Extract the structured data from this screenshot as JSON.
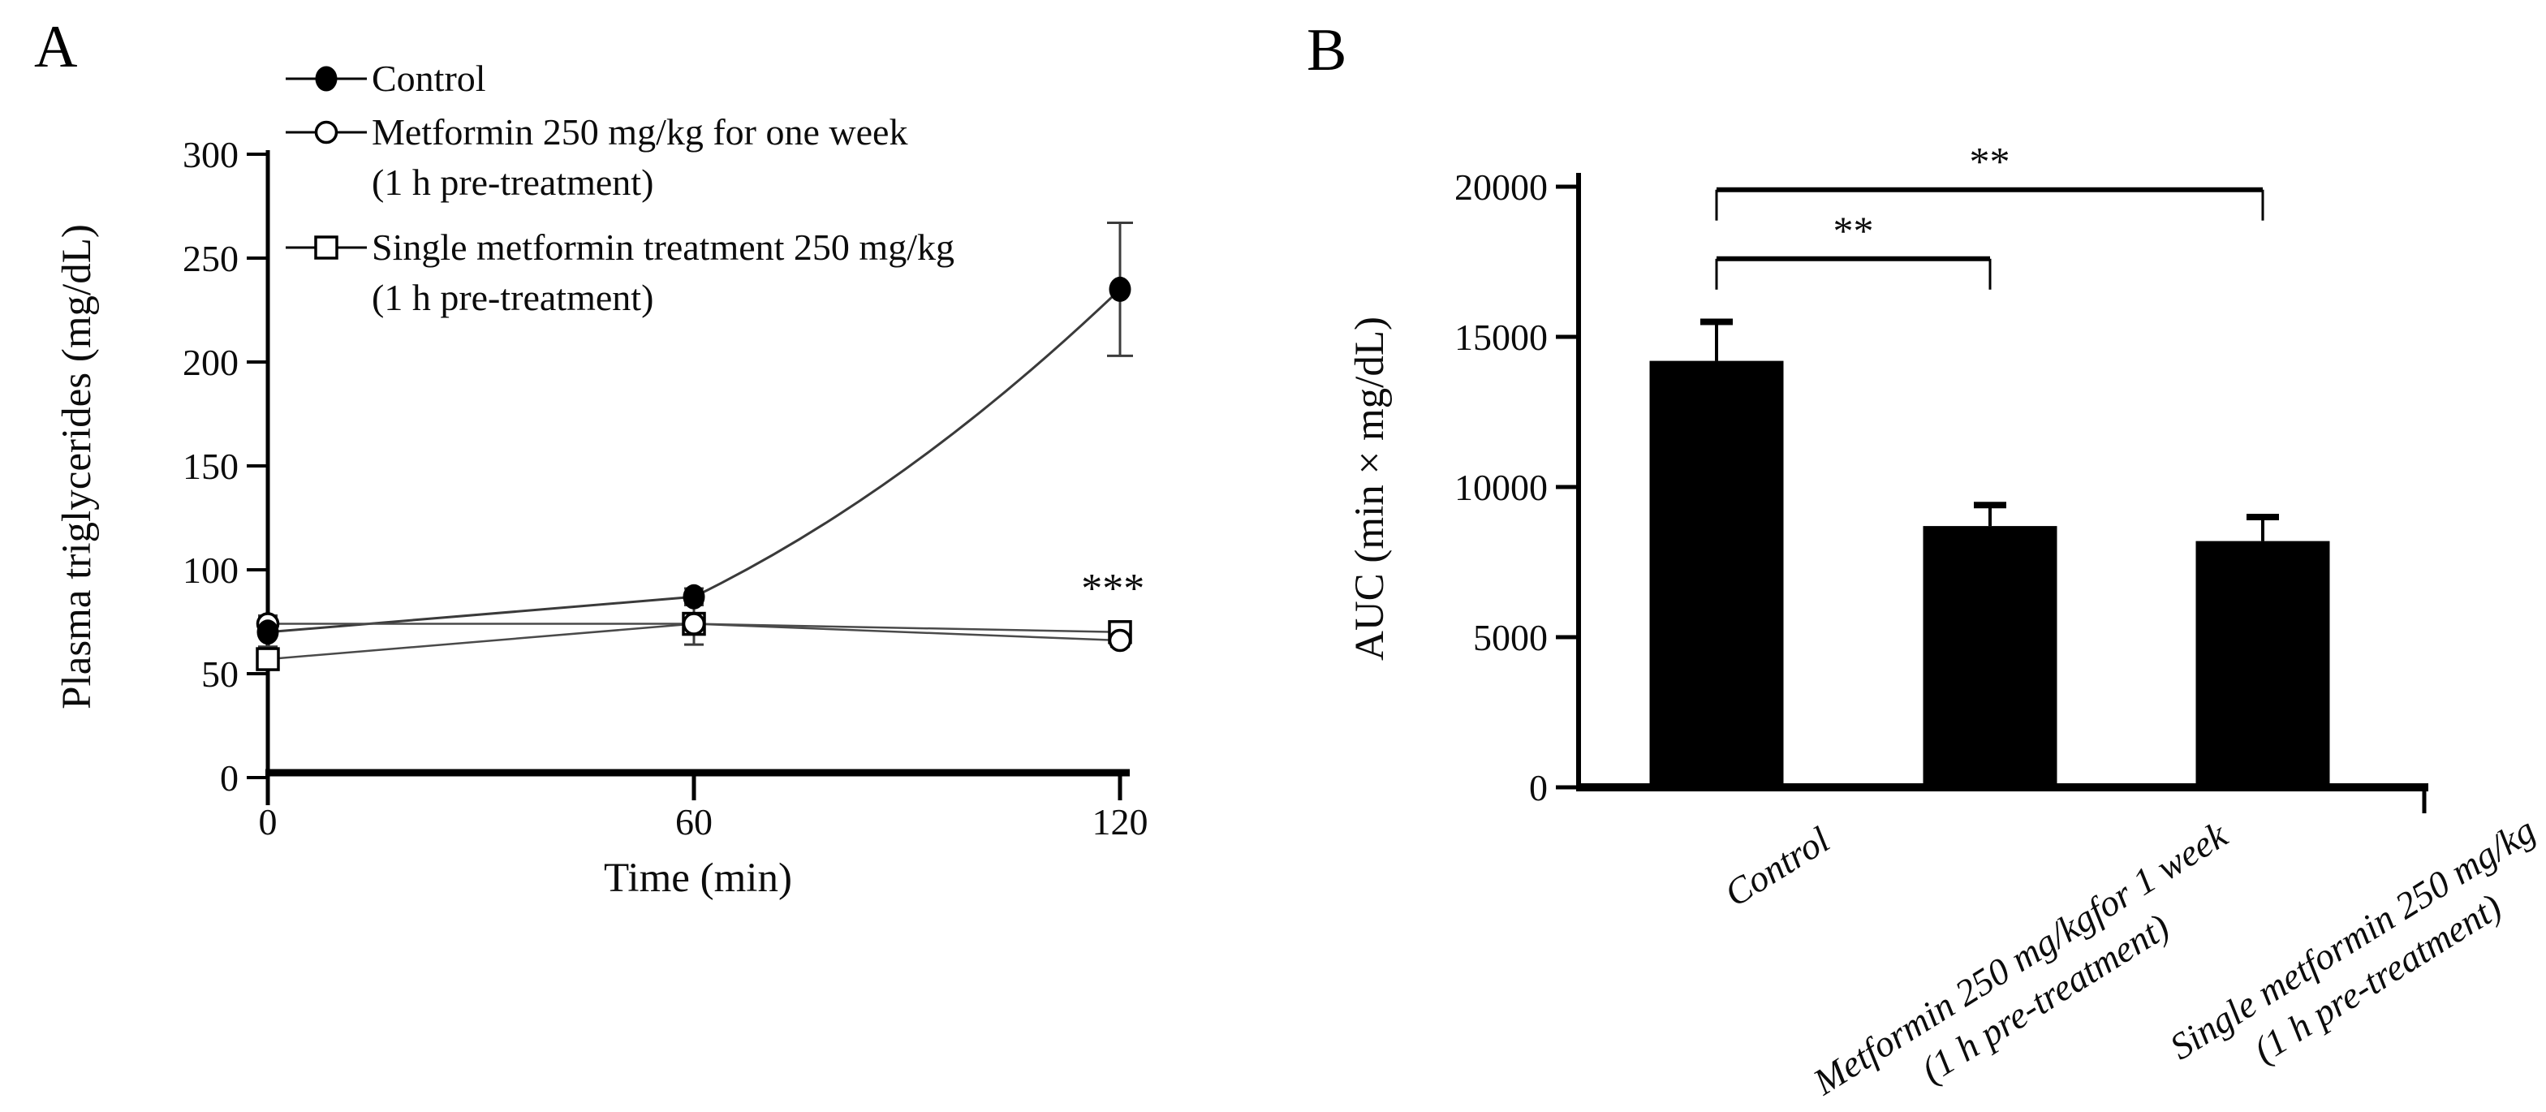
{
  "figure": {
    "panels": [
      {
        "label": "A"
      },
      {
        "label": "B"
      }
    ]
  },
  "colors": {
    "background": "#ffffff",
    "ink": "#000000",
    "series_line": "#4a4a4a",
    "control_line": "#3a3a3a",
    "error_bar": "#3c3c3c",
    "bar_fill": "#000000"
  },
  "chart_data": [
    {
      "type": "line",
      "panel": "A",
      "title": "",
      "xlabel": "Time (min)",
      "ylabel": "Plasma triglycerides (mg/dL)",
      "x": [
        0,
        60,
        120
      ],
      "xticks": [
        0,
        60,
        120
      ],
      "yticks": [
        0,
        50,
        100,
        150,
        200,
        250,
        300
      ],
      "ylim": [
        0,
        300
      ],
      "grid": false,
      "legend_position": "top-left",
      "series": [
        {
          "name": "Control",
          "marker": "filled-circle",
          "values": [
            70,
            87,
            235
          ],
          "errors": [
            7,
            4,
            32
          ]
        },
        {
          "name": "Metformin 250 mg/kg for one week (1 h pre-treatment)",
          "marker": "open-circle",
          "values": [
            74,
            74,
            66
          ],
          "errors": [
            4,
            3,
            3
          ]
        },
        {
          "name": "Single metformin treatment 250 mg/kg (1 h pre-treatment)",
          "marker": "open-square",
          "values": [
            57,
            74,
            70
          ],
          "errors": [
            4,
            10,
            3
          ]
        }
      ],
      "legend": [
        {
          "marker": "filled-circle",
          "lines": [
            "Control"
          ]
        },
        {
          "marker": "open-circle",
          "lines": [
            "Metformin 250 mg/kg for one week",
            "(1 h pre-treatment)"
          ]
        },
        {
          "marker": "open-square",
          "lines": [
            "Single metformin treatment 250 mg/kg",
            "(1 h pre-treatment)"
          ]
        }
      ],
      "annotations": [
        {
          "text": "***",
          "x": 119,
          "y": 100
        }
      ]
    },
    {
      "type": "bar",
      "panel": "B",
      "title": "",
      "xlabel": "",
      "ylabel": "AUC (min × mg/dL)",
      "categories": [
        "Control",
        "Metformin 250 mg/kgfor 1 week\n(1 h pre-treatment)",
        "Single metformin 250 mg/kg\n(1 h pre-treatment)"
      ],
      "values": [
        14200,
        8700,
        8200
      ],
      "errors": [
        1300,
        700,
        800
      ],
      "yticks": [
        0,
        5000,
        10000,
        15000,
        20000
      ],
      "ylim": [
        0,
        20000
      ],
      "grid": false,
      "significance": [
        {
          "from": 0,
          "to": 1,
          "label": "**",
          "y_value": 17600
        },
        {
          "from": 0,
          "to": 2,
          "label": "**",
          "y_value": 19900
        }
      ]
    }
  ]
}
